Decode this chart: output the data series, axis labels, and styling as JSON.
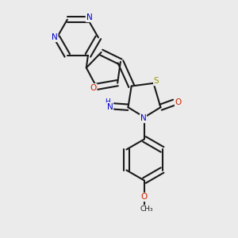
{
  "background_color": "#ebebeb",
  "bond_color": "#1a1a1a",
  "nitrogen_color": "#0000cc",
  "oxygen_color": "#cc2200",
  "sulfur_color": "#999900",
  "line_width": 1.5,
  "figsize": [
    3.0,
    3.0
  ],
  "dpi": 100,
  "xlim": [
    0.05,
    0.95
  ],
  "ylim": [
    0.02,
    0.98
  ]
}
